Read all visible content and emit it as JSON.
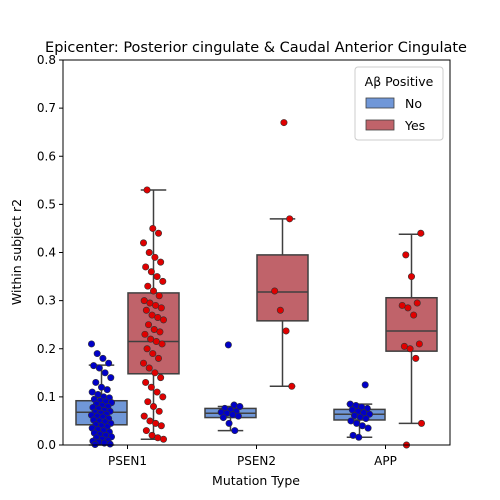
{
  "chart_data": {
    "type": "box",
    "title": "Epicenter: Posterior cingulate & Caudal Anterior Cingulate",
    "xlabel": "Mutation Type",
    "ylabel": "Within subject r2",
    "ylim": [
      0,
      0.8
    ],
    "yticks": [
      0.0,
      0.1,
      0.2,
      0.3,
      0.4,
      0.5,
      0.6,
      0.7,
      0.8
    ],
    "ytick_labels": [
      "0.0",
      "0.1",
      "0.2",
      "0.3",
      "0.4",
      "0.5",
      "0.6",
      "0.7",
      "0.8"
    ],
    "categories": [
      "PSEN1",
      "PSEN2",
      "APP"
    ],
    "legend": {
      "title": "Aβ Positive",
      "placement": "top-right",
      "entries": [
        "No",
        "Yes"
      ]
    },
    "grid": false,
    "series": [
      {
        "name": "No",
        "box_color": "#7097d8",
        "point_color": "#0000c8",
        "boxes": [
          {
            "whislo": 0.0,
            "q1": 0.042,
            "med": 0.068,
            "q3": 0.092,
            "whishi": 0.166
          },
          {
            "whislo": 0.03,
            "q1": 0.057,
            "med": 0.066,
            "q3": 0.076,
            "whishi": 0.08
          },
          {
            "whislo": 0.016,
            "q1": 0.052,
            "med": 0.064,
            "q3": 0.074,
            "whishi": 0.085
          }
        ],
        "points": [
          [
            0.21,
            0.19,
            0.18,
            0.17,
            0.165,
            0.16,
            0.15,
            0.14,
            0.13,
            0.12,
            0.115,
            0.11,
            0.105,
            0.1,
            0.098,
            0.095,
            0.092,
            0.09,
            0.088,
            0.085,
            0.082,
            0.08,
            0.078,
            0.075,
            0.072,
            0.07,
            0.068,
            0.066,
            0.064,
            0.062,
            0.06,
            0.058,
            0.055,
            0.052,
            0.05,
            0.048,
            0.045,
            0.042,
            0.04,
            0.038,
            0.035,
            0.032,
            0.03,
            0.027,
            0.025,
            0.022,
            0.02,
            0.017,
            0.015,
            0.012,
            0.01,
            0.008,
            0.006,
            0.004,
            0.002,
            0.001
          ],
          [
            0.208,
            0.083,
            0.08,
            0.076,
            0.073,
            0.07,
            0.068,
            0.066,
            0.063,
            0.06,
            0.057,
            0.045,
            0.03
          ],
          [
            0.125,
            0.085,
            0.082,
            0.079,
            0.076,
            0.073,
            0.07,
            0.067,
            0.064,
            0.061,
            0.058,
            0.055,
            0.05,
            0.045,
            0.04,
            0.035,
            0.02,
            0.016
          ]
        ]
      },
      {
        "name": "Yes",
        "box_color": "#c0636a",
        "point_color": "#e00000",
        "boxes": [
          {
            "whislo": 0.012,
            "q1": 0.148,
            "med": 0.215,
            "q3": 0.316,
            "whishi": 0.53
          },
          {
            "whislo": 0.122,
            "q1": 0.258,
            "med": 0.318,
            "q3": 0.395,
            "whishi": 0.47
          },
          {
            "whislo": 0.045,
            "q1": 0.195,
            "med": 0.237,
            "q3": 0.306,
            "whishi": 0.438
          }
        ],
        "points": [
          [
            0.53,
            0.45,
            0.44,
            0.42,
            0.4,
            0.39,
            0.38,
            0.37,
            0.36,
            0.35,
            0.34,
            0.33,
            0.32,
            0.31,
            0.3,
            0.295,
            0.29,
            0.285,
            0.28,
            0.27,
            0.265,
            0.26,
            0.25,
            0.24,
            0.235,
            0.23,
            0.22,
            0.215,
            0.21,
            0.2,
            0.19,
            0.18,
            0.17,
            0.16,
            0.15,
            0.14,
            0.13,
            0.12,
            0.11,
            0.1,
            0.09,
            0.08,
            0.07,
            0.06,
            0.05,
            0.045,
            0.04,
            0.03,
            0.02,
            0.015,
            0.012
          ],
          [
            0.67,
            0.47,
            0.32,
            0.28,
            0.237,
            0.122
          ],
          [
            0.44,
            0.395,
            0.35,
            0.295,
            0.29,
            0.285,
            0.27,
            0.21,
            0.205,
            0.2,
            0.18,
            0.045,
            0.0
          ]
        ]
      }
    ]
  }
}
